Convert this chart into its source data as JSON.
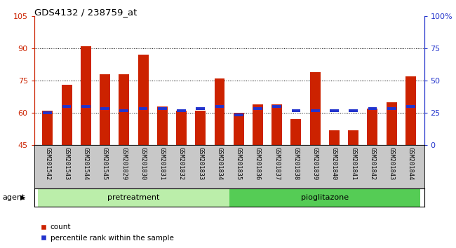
{
  "title": "GDS4132 / 238759_at",
  "samples": [
    "GSM201542",
    "GSM201543",
    "GSM201544",
    "GSM201545",
    "GSM201829",
    "GSM201830",
    "GSM201831",
    "GSM201832",
    "GSM201833",
    "GSM201834",
    "GSM201835",
    "GSM201836",
    "GSM201837",
    "GSM201838",
    "GSM201839",
    "GSM201840",
    "GSM201841",
    "GSM201842",
    "GSM201843",
    "GSM201844"
  ],
  "count_values": [
    61,
    73,
    91,
    78,
    78,
    87,
    63,
    61,
    61,
    76,
    60,
    64,
    64,
    57,
    79,
    52,
    52,
    62,
    65,
    77
  ],
  "percentile_values": [
    60,
    63,
    63,
    62,
    61,
    62,
    62,
    61,
    62,
    63,
    59,
    62,
    63,
    61,
    61,
    61,
    61,
    62,
    62,
    63
  ],
  "ylim_left": [
    45,
    105
  ],
  "ylim_right": [
    0,
    100
  ],
  "yticks_left": [
    45,
    60,
    75,
    90,
    105
  ],
  "yticks_right": [
    0,
    25,
    50,
    75,
    100
  ],
  "ytick_labels_right": [
    "0",
    "25",
    "50",
    "75",
    "100%"
  ],
  "bar_color": "#cc2200",
  "blue_color": "#2233cc",
  "bg_color": "#c8c8c8",
  "pretreatment_color": "#bbeeaa",
  "pioglitazone_color": "#55cc55",
  "bar_width": 0.55,
  "legend_count_label": "count",
  "legend_pct_label": "percentile rank within the sample",
  "agent_label": "agent",
  "grid_lines": [
    60,
    75,
    90
  ],
  "n_pretreatment": 10,
  "n_pioglitazone": 10
}
